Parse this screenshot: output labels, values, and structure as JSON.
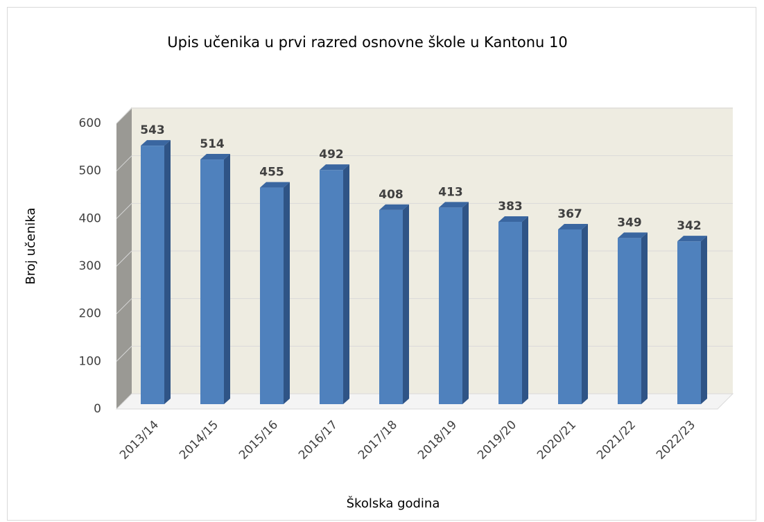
{
  "chart_data": {
    "type": "bar3d",
    "title": "Upis učenika u prvi razred osnovne škole u Kantonu 10",
    "x_label": "Školska godina",
    "y_label": "Broj učenika",
    "categories": [
      "2013/14",
      "2014/15",
      "2015/16",
      "2016/17",
      "2017/18",
      "2018/19",
      "2019/20",
      "2020/21",
      "2021/22",
      "2022/23"
    ],
    "values": [
      543,
      514,
      455,
      492,
      408,
      413,
      383,
      367,
      349,
      342
    ],
    "color": "#4f81bd",
    "ylim": [
      0,
      600
    ],
    "yticks": [
      0,
      100,
      200,
      300,
      400,
      500,
      600
    ],
    "grid": true
  }
}
